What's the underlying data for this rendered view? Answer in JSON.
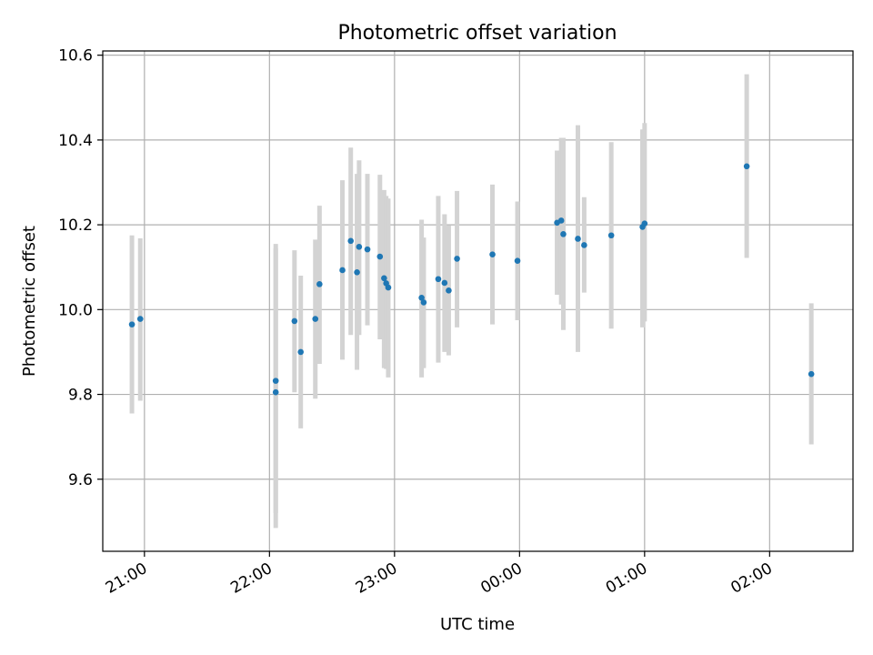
{
  "chart_data": {
    "type": "scatter",
    "title": "Photometric offset variation",
    "xlabel": "UTC time",
    "ylabel": "Photometric offset",
    "x_is_time": true,
    "xlim": [
      "20:40",
      "02:40"
    ],
    "ylim": [
      9.43,
      10.61
    ],
    "x_ticks": [
      "21:00",
      "22:00",
      "23:00",
      "00:00",
      "01:00",
      "02:00"
    ],
    "y_ticks": [
      "9.6",
      "9.8",
      "10.0",
      "10.2",
      "10.4",
      "10.6"
    ],
    "grid": true,
    "point_color": "#1f77b4",
    "errorbar_color": "#d3d3d3",
    "series": [
      {
        "points": [
          {
            "t": "20:54",
            "y": 9.965,
            "lo": 9.755,
            "hi": 10.175
          },
          {
            "t": "20:58",
            "y": 9.978,
            "lo": 9.785,
            "hi": 10.168
          },
          {
            "t": "22:03",
            "y": 9.832,
            "lo": 9.52,
            "hi": 10.145
          },
          {
            "t": "22:03",
            "y": 9.805,
            "lo": 9.485,
            "hi": 10.155
          },
          {
            "t": "22:12",
            "y": 9.973,
            "lo": 9.805,
            "hi": 10.14
          },
          {
            "t": "22:15",
            "y": 9.9,
            "lo": 9.72,
            "hi": 10.08
          },
          {
            "t": "22:22",
            "y": 9.978,
            "lo": 9.79,
            "hi": 10.165
          },
          {
            "t": "22:24",
            "y": 10.06,
            "lo": 9.872,
            "hi": 10.245
          },
          {
            "t": "22:35",
            "y": 10.093,
            "lo": 9.882,
            "hi": 10.305
          },
          {
            "t": "22:39",
            "y": 10.162,
            "lo": 9.94,
            "hi": 10.382
          },
          {
            "t": "22:42",
            "y": 10.088,
            "lo": 9.858,
            "hi": 10.32
          },
          {
            "t": "22:43",
            "y": 10.148,
            "lo": 9.94,
            "hi": 10.352
          },
          {
            "t": "22:47",
            "y": 10.142,
            "lo": 9.963,
            "hi": 10.32
          },
          {
            "t": "22:53",
            "y": 10.125,
            "lo": 9.93,
            "hi": 10.318
          },
          {
            "t": "22:55",
            "y": 10.074,
            "lo": 9.862,
            "hi": 10.282
          },
          {
            "t": "22:56",
            "y": 10.062,
            "lo": 9.86,
            "hi": 10.268
          },
          {
            "t": "22:57",
            "y": 10.052,
            "lo": 9.84,
            "hi": 10.262
          },
          {
            "t": "23:13",
            "y": 10.028,
            "lo": 9.84,
            "hi": 10.212
          },
          {
            "t": "23:14",
            "y": 10.017,
            "lo": 9.862,
            "hi": 10.17
          },
          {
            "t": "23:21",
            "y": 10.072,
            "lo": 9.875,
            "hi": 10.268
          },
          {
            "t": "23:24",
            "y": 10.063,
            "lo": 9.9,
            "hi": 10.225
          },
          {
            "t": "23:26",
            "y": 10.045,
            "lo": 9.892,
            "hi": 10.198
          },
          {
            "t": "23:30",
            "y": 10.12,
            "lo": 9.958,
            "hi": 10.28
          },
          {
            "t": "23:47",
            "y": 10.13,
            "lo": 9.965,
            "hi": 10.295
          },
          {
            "t": "23:59",
            "y": 10.115,
            "lo": 9.975,
            "hi": 10.255
          },
          {
            "t": "00:18",
            "y": 10.205,
            "lo": 10.035,
            "hi": 10.375
          },
          {
            "t": "00:20",
            "y": 10.21,
            "lo": 10.012,
            "hi": 10.405
          },
          {
            "t": "00:21",
            "y": 10.178,
            "lo": 9.952,
            "hi": 10.405
          },
          {
            "t": "00:28",
            "y": 10.167,
            "lo": 9.9,
            "hi": 10.435
          },
          {
            "t": "00:31",
            "y": 10.152,
            "lo": 10.04,
            "hi": 10.265
          },
          {
            "t": "00:44",
            "y": 10.175,
            "lo": 9.955,
            "hi": 10.395
          },
          {
            "t": "00:59",
            "y": 10.195,
            "lo": 9.958,
            "hi": 10.425
          },
          {
            "t": "01:00",
            "y": 10.203,
            "lo": 9.972,
            "hi": 10.44
          },
          {
            "t": "01:49",
            "y": 10.338,
            "lo": 10.122,
            "hi": 10.555
          },
          {
            "t": "02:20",
            "y": 9.848,
            "lo": 9.682,
            "hi": 10.015
          }
        ]
      }
    ]
  }
}
